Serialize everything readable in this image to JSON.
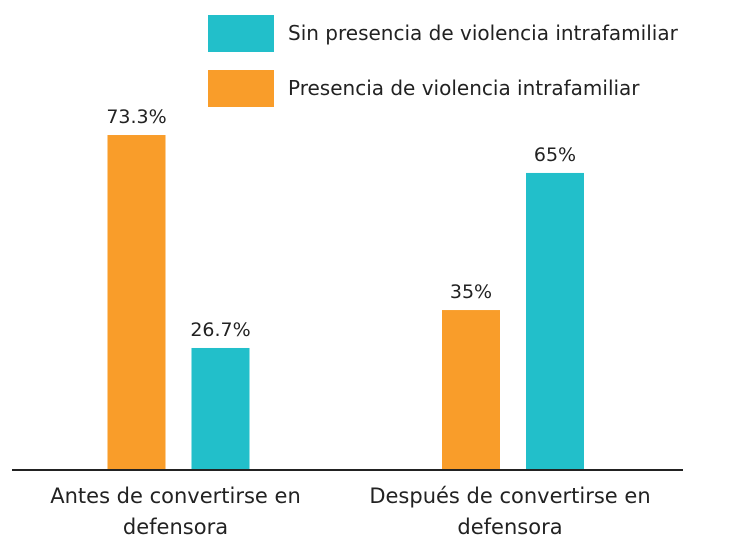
{
  "chart_data": {
    "type": "bar",
    "categories": [
      "Antes de convertirse en defensora",
      "Después de convertirse en defensora"
    ],
    "series": [
      {
        "name": "Presencia de violencia intrafamiliar",
        "color": "#f99d2a",
        "values": [
          73.3,
          35
        ],
        "value_labels": [
          "73.3%",
          "35%"
        ]
      },
      {
        "name": "Sin presencia de violencia intrafamiliar",
        "color": "#22bfca",
        "values": [
          26.7,
          65
        ],
        "value_labels": [
          "26.7%",
          "65%"
        ]
      }
    ],
    "legend": "top-right"
  }
}
